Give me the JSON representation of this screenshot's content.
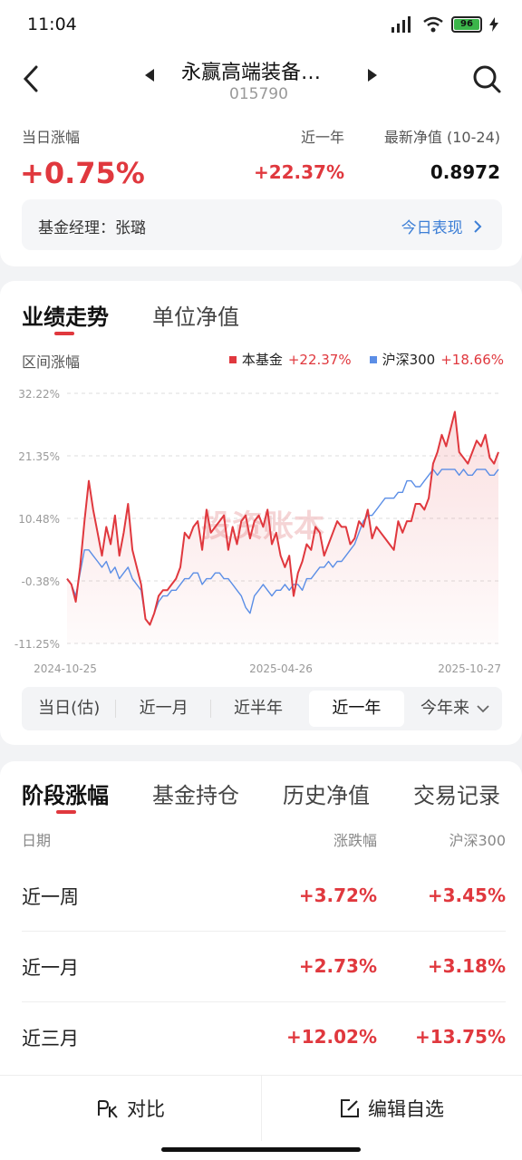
{
  "status": {
    "time": "11:04",
    "battery": "96"
  },
  "header": {
    "fund_name": "永赢高端装备…",
    "fund_code": "015790"
  },
  "summary": {
    "daily_label": "当日涨幅",
    "daily_value": "+0.75%",
    "year_label": "近一年",
    "year_value": "+22.37%",
    "nav_label": "最新净值 (10-24)",
    "nav_value": "0.8972",
    "manager_text": "基金经理：张璐",
    "manager_link": "今日表现"
  },
  "perf": {
    "tabs": [
      "业绩走势",
      "单位净值"
    ],
    "range_label": "区间涨幅",
    "legend": [
      {
        "name": "本基金",
        "value": "+22.37%",
        "color": "#e0383e"
      },
      {
        "name": "沪深300",
        "value": "+18.66%",
        "color": "#5b8ee6"
      }
    ],
    "watermark": "投资账本",
    "periods": [
      "当日(估)",
      "近一月",
      "近半年",
      "近一年",
      "今年来"
    ]
  },
  "chart_data": {
    "type": "line",
    "ylim": [
      -11.25,
      32.22
    ],
    "y_ticks": [
      "32.22%",
      "21.35%",
      "10.48%",
      "-0.38%",
      "-11.25%"
    ],
    "x_ticks": [
      "2024-10-25",
      "2025-04-26",
      "2025-10-27"
    ],
    "series": [
      {
        "name": "本基金",
        "color": "#e0383e",
        "values": [
          0,
          -1,
          -4,
          2,
          10,
          17,
          12,
          8,
          4,
          9,
          6,
          11,
          4,
          8,
          13,
          5,
          2,
          -1,
          -7,
          -8,
          -6,
          -3,
          -2,
          -2,
          -1,
          0,
          2,
          8,
          7,
          9,
          10,
          5,
          12,
          8,
          9,
          10,
          11,
          5,
          9,
          6,
          10,
          11,
          7,
          10,
          11,
          9,
          12,
          6,
          8,
          4,
          2,
          4,
          -3,
          1,
          3,
          6,
          5,
          9,
          8,
          4,
          6,
          8,
          10,
          9,
          9,
          6,
          7,
          10,
          9,
          12,
          7,
          9,
          8,
          7,
          6,
          5,
          10,
          8,
          10,
          10,
          13,
          13,
          12,
          14,
          20,
          22,
          25,
          23,
          26,
          29,
          22,
          21,
          20,
          22,
          24,
          23,
          25,
          21,
          20,
          22
        ]
      },
      {
        "name": "沪深300",
        "color": "#5b8ee6",
        "values": [
          0,
          -1,
          -3,
          1,
          5,
          5,
          4,
          3,
          2,
          3,
          1,
          2,
          0,
          1,
          2,
          0,
          -1,
          -2,
          -7,
          -8,
          -6,
          -4,
          -3,
          -3,
          -2,
          -2,
          -1,
          0,
          0,
          1,
          1,
          -1,
          0,
          0,
          1,
          1,
          0,
          0,
          -1,
          -2,
          -3,
          -5,
          -6,
          -3,
          -2,
          -1,
          -2,
          -3,
          -2,
          -2,
          -1,
          -2,
          -1,
          -1,
          -2,
          0,
          0,
          1,
          2,
          2,
          3,
          2,
          3,
          3,
          4,
          5,
          6,
          8,
          10,
          11,
          11,
          12,
          13,
          14,
          14,
          14,
          15,
          15,
          17,
          17,
          16,
          16,
          17,
          18,
          19,
          18,
          19,
          19,
          19,
          19,
          18,
          19,
          18,
          18,
          19,
          19,
          19,
          18,
          18,
          19
        ]
      }
    ]
  },
  "stage": {
    "tabs": [
      "阶段涨幅",
      "基金持仓",
      "历史净值",
      "交易记录"
    ],
    "headers": [
      "日期",
      "涨跌幅",
      "沪深300"
    ],
    "rows": [
      {
        "period": "近一周",
        "fund": "+3.72%",
        "index": "+3.45%"
      },
      {
        "period": "近一月",
        "fund": "+2.73%",
        "index": "+3.18%"
      },
      {
        "period": "近三月",
        "fund": "+12.02%",
        "index": "+13.75%"
      }
    ]
  },
  "bottom": {
    "compare": "对比",
    "edit": "编辑自选"
  }
}
